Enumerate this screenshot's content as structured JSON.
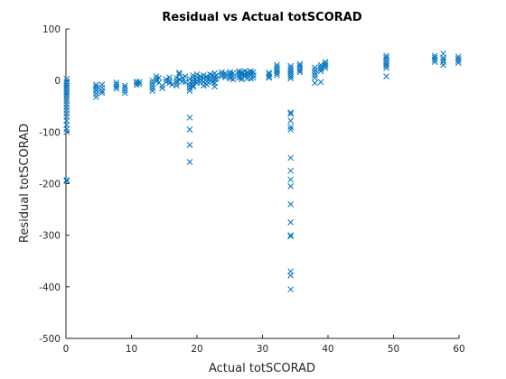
{
  "chart_data": {
    "type": "scatter",
    "title": "Residual vs Actual totSCORAD",
    "xlabel": "Actual totSCORAD",
    "ylabel": "Residual totSCORAD",
    "xlim": [
      0,
      60
    ],
    "ylim": [
      -500,
      100
    ],
    "xticks": [
      0,
      10,
      20,
      30,
      40,
      50,
      60
    ],
    "yticks": [
      -500,
      -400,
      -300,
      -200,
      -100,
      0,
      100
    ],
    "marker": "x",
    "color": "#0072BD",
    "grid": false,
    "legend": "none",
    "points": [
      [
        0.1,
        3
      ],
      [
        0.1,
        -2
      ],
      [
        0.1,
        -6
      ],
      [
        0.1,
        -10
      ],
      [
        0.1,
        -14
      ],
      [
        0.1,
        -18
      ],
      [
        0.1,
        -22
      ],
      [
        0.1,
        -26
      ],
      [
        0.1,
        -30
      ],
      [
        0.1,
        -35
      ],
      [
        0.1,
        -40
      ],
      [
        0.1,
        -46
      ],
      [
        0.1,
        -52
      ],
      [
        0.1,
        -58
      ],
      [
        0.1,
        -64
      ],
      [
        0.1,
        -70
      ],
      [
        0.1,
        -78
      ],
      [
        0.1,
        -86
      ],
      [
        0.1,
        -94
      ],
      [
        0.1,
        -100
      ],
      [
        0.1,
        -193
      ],
      [
        0.1,
        -195
      ],
      [
        4.6,
        -8
      ],
      [
        4.6,
        -12
      ],
      [
        4.6,
        -16
      ],
      [
        4.6,
        -20
      ],
      [
        4.6,
        -26
      ],
      [
        4.6,
        -32
      ],
      [
        5.5,
        -8
      ],
      [
        5.5,
        -14
      ],
      [
        5.5,
        -20
      ],
      [
        5.5,
        -24
      ],
      [
        7.7,
        -4
      ],
      [
        7.7,
        -8
      ],
      [
        7.7,
        -12
      ],
      [
        7.7,
        -16
      ],
      [
        9.0,
        -10
      ],
      [
        9.0,
        -14
      ],
      [
        9.0,
        -19
      ],
      [
        9.0,
        -24
      ],
      [
        10.8,
        -2
      ],
      [
        10.8,
        -5
      ],
      [
        10.8,
        -9
      ],
      [
        11.2,
        -3
      ],
      [
        11.2,
        -7
      ],
      [
        13.2,
        0
      ],
      [
        13.2,
        -5
      ],
      [
        13.2,
        -10
      ],
      [
        13.2,
        -15
      ],
      [
        13.2,
        -20
      ],
      [
        13.8,
        8
      ],
      [
        13.8,
        3
      ],
      [
        13.8,
        -2
      ],
      [
        14.2,
        5
      ],
      [
        14.2,
        -4
      ],
      [
        14.7,
        -10
      ],
      [
        14.7,
        -15
      ],
      [
        15.3,
        2
      ],
      [
        15.3,
        -3
      ],
      [
        15.8,
        6
      ],
      [
        15.8,
        0
      ],
      [
        15.8,
        -5
      ],
      [
        16.2,
        -8
      ],
      [
        16.9,
        5
      ],
      [
        16.9,
        0
      ],
      [
        16.9,
        -5
      ],
      [
        16.9,
        -10
      ],
      [
        17.3,
        12
      ],
      [
        17.3,
        15
      ],
      [
        17.3,
        2
      ],
      [
        17.8,
        5
      ],
      [
        17.8,
        -2
      ],
      [
        18.2,
        8
      ],
      [
        18.2,
        -3
      ],
      [
        18.9,
        3
      ],
      [
        18.9,
        -5
      ],
      [
        18.9,
        -10
      ],
      [
        18.9,
        -15
      ],
      [
        18.9,
        -20
      ],
      [
        18.9,
        -72
      ],
      [
        18.9,
        -95
      ],
      [
        18.9,
        -125
      ],
      [
        18.9,
        -158
      ],
      [
        19.4,
        10
      ],
      [
        19.4,
        5
      ],
      [
        19.4,
        0
      ],
      [
        19.4,
        -5
      ],
      [
        19.4,
        -10
      ],
      [
        19.4,
        -12
      ],
      [
        20.0,
        12
      ],
      [
        20.0,
        6
      ],
      [
        20.0,
        0
      ],
      [
        20.0,
        -5
      ],
      [
        20.5,
        8
      ],
      [
        20.5,
        2
      ],
      [
        20.5,
        -4
      ],
      [
        21.0,
        10
      ],
      [
        21.0,
        4
      ],
      [
        21.0,
        -3
      ],
      [
        21.0,
        -10
      ],
      [
        21.5,
        8
      ],
      [
        21.5,
        3
      ],
      [
        21.5,
        -2
      ],
      [
        21.5,
        -8
      ],
      [
        22.0,
        12
      ],
      [
        22.0,
        6
      ],
      [
        22.0,
        0
      ],
      [
        22.3,
        10
      ],
      [
        22.3,
        3
      ],
      [
        22.3,
        -3
      ],
      [
        22.7,
        14
      ],
      [
        22.7,
        8
      ],
      [
        22.7,
        2
      ],
      [
        22.7,
        -5
      ],
      [
        22.7,
        -12
      ],
      [
        23.0,
        10
      ],
      [
        23.0,
        3
      ],
      [
        23.8,
        16
      ],
      [
        23.8,
        12
      ],
      [
        23.8,
        8
      ],
      [
        24.3,
        14
      ],
      [
        24.3,
        10
      ],
      [
        24.3,
        6
      ],
      [
        25.1,
        16
      ],
      [
        25.1,
        12
      ],
      [
        25.1,
        8
      ],
      [
        25.1,
        4
      ],
      [
        25.5,
        14
      ],
      [
        25.5,
        8
      ],
      [
        25.5,
        2
      ],
      [
        26.4,
        18
      ],
      [
        26.4,
        14
      ],
      [
        26.4,
        10
      ],
      [
        26.4,
        5
      ],
      [
        26.8,
        16
      ],
      [
        26.8,
        12
      ],
      [
        26.8,
        6
      ],
      [
        26.8,
        2
      ],
      [
        27.3,
        18
      ],
      [
        27.3,
        12
      ],
      [
        27.3,
        8
      ],
      [
        27.7,
        16
      ],
      [
        27.7,
        10
      ],
      [
        27.7,
        4
      ],
      [
        28.2,
        18
      ],
      [
        28.2,
        14
      ],
      [
        28.2,
        10
      ],
      [
        28.2,
        4
      ],
      [
        28.6,
        16
      ],
      [
        28.6,
        10
      ],
      [
        28.6,
        5
      ],
      [
        31.0,
        15
      ],
      [
        31.0,
        12
      ],
      [
        31.0,
        8
      ],
      [
        31.0,
        5
      ],
      [
        32.2,
        30
      ],
      [
        32.2,
        26
      ],
      [
        32.2,
        22
      ],
      [
        32.2,
        18
      ],
      [
        32.2,
        14
      ],
      [
        32.2,
        10
      ],
      [
        34.3,
        28
      ],
      [
        34.3,
        24
      ],
      [
        34.3,
        20
      ],
      [
        34.3,
        16
      ],
      [
        34.3,
        12
      ],
      [
        34.3,
        8
      ],
      [
        34.3,
        4
      ],
      [
        34.3,
        -62
      ],
      [
        34.3,
        -65
      ],
      [
        34.3,
        -78
      ],
      [
        34.3,
        -90
      ],
      [
        34.3,
        -95
      ],
      [
        34.3,
        -150
      ],
      [
        34.3,
        -175
      ],
      [
        34.3,
        -192
      ],
      [
        34.3,
        -205
      ],
      [
        34.3,
        -240
      ],
      [
        34.3,
        -275
      ],
      [
        34.3,
        -300
      ],
      [
        34.3,
        -302
      ],
      [
        34.3,
        -370
      ],
      [
        34.3,
        -378
      ],
      [
        34.3,
        -405
      ],
      [
        35.7,
        32
      ],
      [
        35.7,
        28
      ],
      [
        35.7,
        24
      ],
      [
        35.7,
        20
      ],
      [
        35.7,
        16
      ],
      [
        38.0,
        25
      ],
      [
        38.0,
        20
      ],
      [
        38.0,
        15
      ],
      [
        38.0,
        10
      ],
      [
        38.0,
        5
      ],
      [
        38.0,
        -5
      ],
      [
        38.9,
        30
      ],
      [
        38.9,
        26
      ],
      [
        38.9,
        22
      ],
      [
        38.9,
        18
      ],
      [
        38.9,
        -3
      ],
      [
        39.6,
        36
      ],
      [
        39.6,
        32
      ],
      [
        39.6,
        28
      ],
      [
        39.6,
        24
      ],
      [
        48.9,
        48
      ],
      [
        48.9,
        44
      ],
      [
        48.9,
        40
      ],
      [
        48.9,
        36
      ],
      [
        48.9,
        32
      ],
      [
        48.9,
        28
      ],
      [
        48.9,
        24
      ],
      [
        48.9,
        8
      ],
      [
        56.3,
        48
      ],
      [
        56.3,
        44
      ],
      [
        56.3,
        40
      ],
      [
        56.3,
        36
      ],
      [
        57.6,
        52
      ],
      [
        57.6,
        44
      ],
      [
        57.6,
        40
      ],
      [
        57.6,
        36
      ],
      [
        57.6,
        30
      ],
      [
        59.9,
        46
      ],
      [
        59.9,
        42
      ],
      [
        59.9,
        38
      ],
      [
        59.9,
        34
      ]
    ]
  }
}
